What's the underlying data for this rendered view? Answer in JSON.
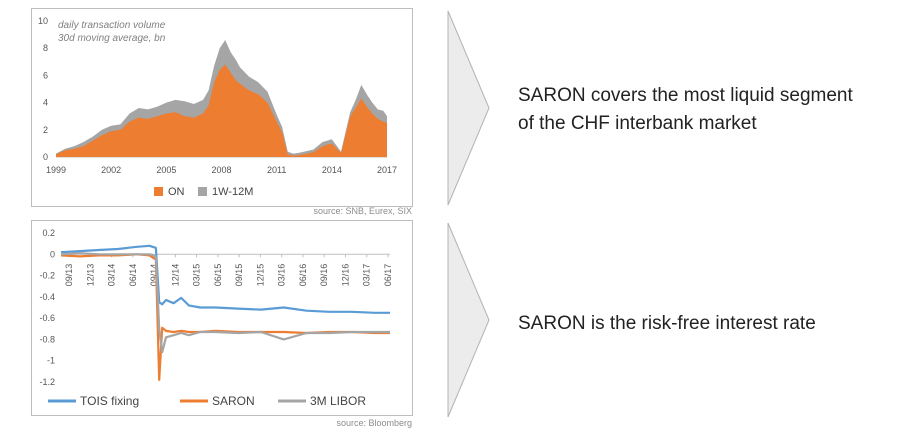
{
  "chart_data": [
    {
      "type": "area",
      "annotation_lines": [
        "daily transaction volume",
        "30d moving average, bn"
      ],
      "xlabel": "",
      "ylabel": "",
      "x_range": [
        1999,
        2017
      ],
      "x_ticks": [
        "1999",
        "2002",
        "2005",
        "2008",
        "2011",
        "2014",
        "2017"
      ],
      "ylim": [
        0,
        10
      ],
      "y_ticks": [
        "0",
        "2",
        "4",
        "6",
        "8",
        "10"
      ],
      "grid": false,
      "stacked": true,
      "legend_position": "bottom",
      "x": [
        1999.0,
        1999.5,
        2000.0,
        2000.5,
        2001.0,
        2001.5,
        2002.0,
        2002.5,
        2003.0,
        2003.5,
        2004.0,
        2004.5,
        2005.0,
        2005.5,
        2006.0,
        2006.5,
        2007.0,
        2007.3,
        2007.6,
        2007.9,
        2008.2,
        2008.5,
        2008.8,
        2009.0,
        2009.5,
        2010.0,
        2010.5,
        2011.0,
        2011.3,
        2011.6,
        2011.9,
        2012.2,
        2012.5,
        2013.0,
        2013.5,
        2014.0,
        2014.5,
        2015.0,
        2015.3,
        2015.6,
        2015.9,
        2016.2,
        2016.5,
        2016.8,
        2017.0
      ],
      "series": [
        {
          "name": "ON",
          "color": "#ed7d31",
          "values": [
            0.2,
            0.5,
            0.6,
            0.8,
            1.2,
            1.6,
            1.9,
            2.0,
            2.6,
            2.9,
            2.8,
            3.0,
            3.2,
            3.3,
            3.0,
            2.9,
            3.2,
            3.8,
            5.5,
            6.4,
            6.8,
            6.2,
            5.6,
            5.4,
            4.9,
            4.6,
            4.0,
            2.6,
            1.8,
            0.2,
            0.1,
            0.15,
            0.2,
            0.35,
            0.8,
            1.0,
            0.3,
            3.0,
            3.6,
            4.3,
            3.7,
            3.2,
            2.8,
            2.6,
            2.5
          ]
        },
        {
          "name": "1W-12M",
          "color": "#a5a5a5",
          "values": [
            0.05,
            0.1,
            0.2,
            0.3,
            0.3,
            0.4,
            0.4,
            0.4,
            0.6,
            0.7,
            0.7,
            0.7,
            0.8,
            0.9,
            1.1,
            1.0,
            1.0,
            1.1,
            1.2,
            1.6,
            1.8,
            1.5,
            1.5,
            1.2,
            1.0,
            0.9,
            0.8,
            0.5,
            0.4,
            0.2,
            0.15,
            0.15,
            0.2,
            0.2,
            0.3,
            0.3,
            0.1,
            0.3,
            0.6,
            1.0,
            0.9,
            0.8,
            0.7,
            0.8,
            0.5
          ]
        }
      ]
    },
    {
      "type": "line",
      "xlabel": "",
      "ylabel": "",
      "x_range": [
        2013.667,
        2018.0
      ],
      "x_ticks": [
        "09/13",
        "12/13",
        "03/14",
        "06/14",
        "09/14",
        "12/14",
        "03/15",
        "06/15",
        "09/15",
        "12/15",
        "03/16",
        "06/16",
        "09/16",
        "12/16",
        "03/17",
        "06/17"
      ],
      "ylim": [
        -1.2,
        0.2
      ],
      "y_ticks": [
        "0.2",
        "0",
        "-0.2",
        "-0.4",
        "-0.6",
        "-0.8",
        "-1",
        "-1.2"
      ],
      "grid": false,
      "legend_position": "bottom",
      "x": [
        2013.667,
        2013.917,
        2014.167,
        2014.417,
        2014.667,
        2014.833,
        2014.917,
        2014.96,
        2015.0,
        2015.05,
        2015.15,
        2015.25,
        2015.35,
        2015.5,
        2015.7,
        2016.0,
        2016.3,
        2016.6,
        2016.9,
        2017.2,
        2017.5,
        2017.8,
        2018.0
      ],
      "series": [
        {
          "name": "TOIS fixing",
          "color": "#5b9bd5",
          "values": [
            0.02,
            0.03,
            0.04,
            0.05,
            0.07,
            0.08,
            0.06,
            -0.45,
            -0.47,
            -0.43,
            -0.46,
            -0.41,
            -0.48,
            -0.5,
            -0.5,
            -0.51,
            -0.52,
            -0.5,
            -0.53,
            -0.54,
            -0.54,
            -0.55,
            -0.55
          ]
        },
        {
          "name": "SARON",
          "color": "#ed7d31",
          "values": [
            -0.01,
            -0.02,
            -0.01,
            -0.01,
            0.0,
            -0.01,
            -0.05,
            -1.18,
            -0.69,
            -0.72,
            -0.73,
            -0.72,
            -0.73,
            -0.73,
            -0.72,
            -0.73,
            -0.73,
            -0.73,
            -0.74,
            -0.73,
            -0.73,
            -0.74,
            -0.74
          ]
        },
        {
          "name": "3M LIBOR",
          "color": "#a5a5a5",
          "values": [
            0.0,
            0.01,
            0.0,
            0.0,
            0.0,
            0.0,
            -0.02,
            -0.7,
            -0.92,
            -0.78,
            -0.76,
            -0.74,
            -0.76,
            -0.73,
            -0.73,
            -0.74,
            -0.73,
            -0.8,
            -0.74,
            -0.74,
            -0.73,
            -0.73,
            -0.73
          ]
        }
      ]
    }
  ],
  "sources": [
    "source: SNB, Eurex, SIX",
    "source: Bloomberg"
  ],
  "statements": [
    {
      "lines": [
        "SARON covers the most liquid segment",
        "of the CHF interbank market"
      ]
    },
    {
      "lines": [
        "SARON is the risk-free interest rate"
      ]
    }
  ]
}
